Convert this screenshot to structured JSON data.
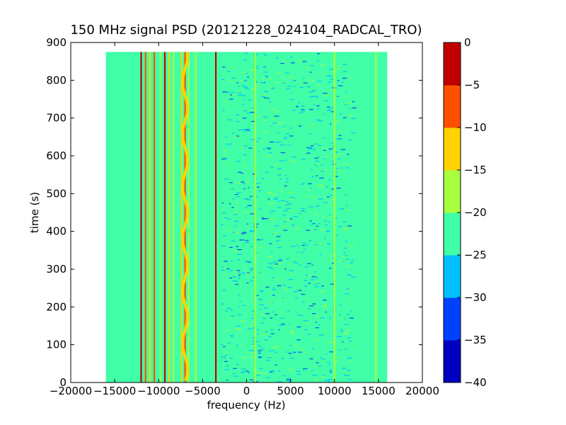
{
  "chart_data": {
    "type": "heatmap",
    "title": "150 MHz signal PSD (20121228_024104_RADCAL_TRO)",
    "xlabel": "frequency (Hz)",
    "ylabel": "time (s)",
    "xlim": [
      -20000,
      20000
    ],
    "ylim": [
      0,
      900
    ],
    "x_ticks": [
      -20000,
      -15000,
      -10000,
      -5000,
      0,
      5000,
      10000,
      15000,
      20000
    ],
    "y_ticks": [
      0,
      100,
      200,
      300,
      400,
      500,
      600,
      700,
      800,
      900
    ],
    "data_extent": {
      "x": [
        -16000,
        16000
      ],
      "y": [
        0,
        875
      ]
    },
    "colorbar": {
      "levels": [
        -40,
        -35,
        -30,
        -25,
        -20,
        -15,
        -10,
        -5,
        0
      ],
      "tick_labels": [
        "0",
        "−5",
        "−10",
        "−15",
        "−20",
        "−25",
        "−30",
        "−35",
        "−40"
      ],
      "colors": [
        "#0000c0",
        "#0040ff",
        "#00c0ff",
        "#40ffa8",
        "#a8ff40",
        "#ffd200",
        "#ff5000",
        "#c00000"
      ]
    },
    "background_level_color": "#40ffa8",
    "vertical_lines": [
      {
        "x": -12000,
        "color": "#c00000"
      },
      {
        "x": -11500,
        "color": "#ff5000"
      },
      {
        "x": -11000,
        "color": "#ffd200"
      },
      {
        "x": -10500,
        "color": "#ff5000"
      },
      {
        "x": -9800,
        "color": "#a8ff40"
      },
      {
        "x": -9300,
        "color": "#c00000"
      },
      {
        "x": -8800,
        "color": "#ffd200"
      },
      {
        "x": -8300,
        "color": "#a8ff40"
      },
      {
        "x": -7400,
        "color": "#ffd200"
      },
      {
        "x": -7000,
        "color": "#ff5000"
      },
      {
        "x": -6600,
        "color": "#a8ff40"
      },
      {
        "x": -5800,
        "color": "#a8ff40"
      },
      {
        "x": -3500,
        "color": "#c00000"
      },
      {
        "x": 1000,
        "color": "#a8ff40"
      },
      {
        "x": 10000,
        "color": "#a8ff40"
      },
      {
        "x": 14700,
        "color": "#a8ff40"
      }
    ]
  }
}
